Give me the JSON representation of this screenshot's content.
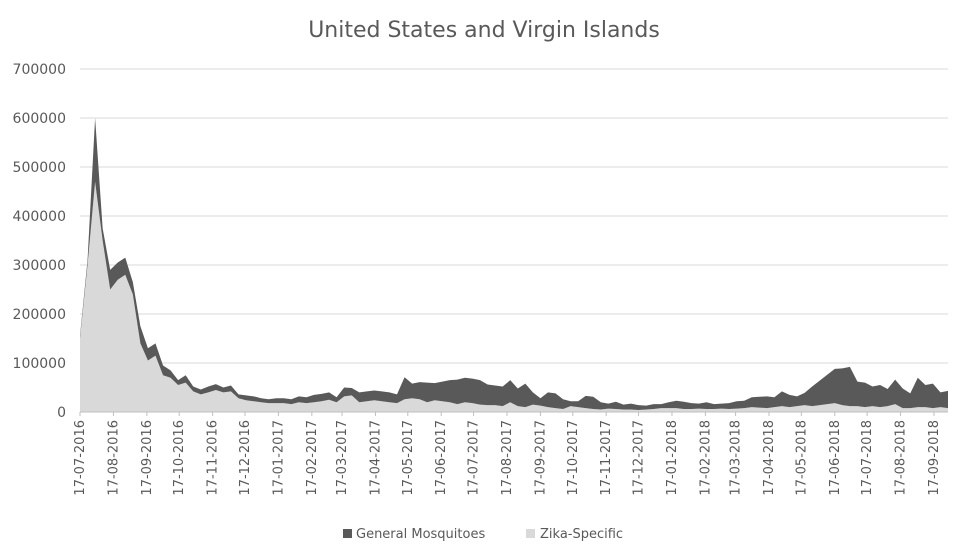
{
  "chart_data": {
    "type": "area",
    "stacked": true,
    "title": "United States and Virgin Islands",
    "xlabel": "",
    "ylabel": "",
    "ylim": [
      0,
      700000
    ],
    "yticks": [
      "0",
      "100000",
      "200000",
      "300000",
      "400000",
      "500000",
      "600000",
      "700000"
    ],
    "xticks": [
      "17-07-2016",
      "17-08-2016",
      "17-09-2016",
      "17-10-2016",
      "17-11-2016",
      "17-12-2016",
      "17-01-2017",
      "17-02-2017",
      "17-03-2017",
      "17-04-2017",
      "17-05-2017",
      "17-06-2017",
      "17-07-2017",
      "17-08-2017",
      "17-09-2017",
      "17-10-2017",
      "17-11-2017",
      "17-12-2017",
      "17-01-2018",
      "17-02-2018",
      "17-03-2018",
      "17-04-2018",
      "17-05-2018",
      "17-06-2018",
      "17-07-2018",
      "17-08-2018",
      "17-09-2018"
    ],
    "grid": "horizontal",
    "legend_position": "bottom",
    "colors": {
      "General Mosquitoes": "#595959",
      "Zika-Specific": "#d9d9d9"
    },
    "x": [
      "2016-07-17",
      "2016-07-24",
      "2016-07-31",
      "2016-08-07",
      "2016-08-14",
      "2016-08-21",
      "2016-08-28",
      "2016-09-04",
      "2016-09-11",
      "2016-09-18",
      "2016-09-25",
      "2016-10-02",
      "2016-10-09",
      "2016-10-16",
      "2016-10-23",
      "2016-10-30",
      "2016-11-06",
      "2016-11-13",
      "2016-11-20",
      "2016-11-27",
      "2016-12-04",
      "2016-12-11",
      "2016-12-18",
      "2016-12-25",
      "2017-01-01",
      "2017-01-08",
      "2017-01-15",
      "2017-01-22",
      "2017-01-29",
      "2017-02-05",
      "2017-02-12",
      "2017-02-19",
      "2017-02-26",
      "2017-03-05",
      "2017-03-12",
      "2017-03-19",
      "2017-03-26",
      "2017-04-02",
      "2017-04-09",
      "2017-04-16",
      "2017-04-23",
      "2017-04-30",
      "2017-05-07",
      "2017-05-14",
      "2017-05-21",
      "2017-05-28",
      "2017-06-04",
      "2017-06-11",
      "2017-06-18",
      "2017-06-25",
      "2017-07-02",
      "2017-07-09",
      "2017-07-16",
      "2017-07-23",
      "2017-07-30",
      "2017-08-06",
      "2017-08-13",
      "2017-08-20",
      "2017-08-27",
      "2017-09-03",
      "2017-09-10",
      "2017-09-17",
      "2017-09-24",
      "2017-10-01",
      "2017-10-08",
      "2017-10-15",
      "2017-10-22",
      "2017-10-29",
      "2017-11-05",
      "2017-11-12",
      "2017-11-19",
      "2017-11-26",
      "2017-12-03",
      "2017-12-10",
      "2017-12-17",
      "2017-12-24",
      "2017-12-31",
      "2018-01-07",
      "2018-01-14",
      "2018-01-21",
      "2018-01-28",
      "2018-02-04",
      "2018-02-11",
      "2018-02-18",
      "2018-02-25",
      "2018-03-04",
      "2018-03-11",
      "2018-03-18",
      "2018-03-25",
      "2018-04-01",
      "2018-04-08",
      "2018-04-15",
      "2018-04-22",
      "2018-04-29",
      "2018-05-06",
      "2018-05-13",
      "2018-05-20",
      "2018-05-27",
      "2018-06-03",
      "2018-06-10",
      "2018-06-17",
      "2018-06-24",
      "2018-07-01",
      "2018-07-08",
      "2018-07-15",
      "2018-07-22",
      "2018-07-29",
      "2018-08-05",
      "2018-08-12",
      "2018-08-19",
      "2018-08-26",
      "2018-09-02",
      "2018-09-09",
      "2018-09-16",
      "2018-09-23",
      "2018-09-30"
    ],
    "series": [
      {
        "name": "Zika-Specific",
        "values": [
          150000,
          300000,
          470000,
          350000,
          250000,
          270000,
          280000,
          240000,
          140000,
          105000,
          115000,
          75000,
          70000,
          55000,
          60000,
          42000,
          36000,
          40000,
          45000,
          40000,
          42000,
          28000,
          24000,
          22000,
          20000,
          18000,
          18000,
          18000,
          16000,
          20000,
          18000,
          20000,
          22000,
          25000,
          20000,
          32000,
          34000,
          20000,
          22000,
          24000,
          22000,
          20000,
          18000,
          26000,
          28000,
          26000,
          20000,
          24000,
          22000,
          20000,
          16000,
          20000,
          18000,
          15000,
          14000,
          14000,
          12000,
          20000,
          12000,
          10000,
          15000,
          13000,
          10000,
          8000,
          6000,
          12000,
          10000,
          8000,
          6000,
          5000,
          7000,
          6000,
          5000,
          5000,
          4000,
          5000,
          6000,
          8000,
          8000,
          8000,
          6000,
          6000,
          7000,
          6000,
          6000,
          7000,
          6000,
          7000,
          8000,
          10000,
          9000,
          8000,
          10000,
          12000,
          10000,
          12000,
          14000,
          12000,
          14000,
          16000,
          18000,
          14000,
          12000,
          12000,
          10000,
          12000,
          10000,
          12000,
          16000,
          8000,
          8000,
          10000,
          10000,
          8000,
          10000,
          8000
        ]
      },
      {
        "name": "General Mosquitoes",
        "values": [
          5000,
          10000,
          130000,
          25000,
          40000,
          35000,
          35000,
          25000,
          35000,
          25000,
          25000,
          20000,
          15000,
          10000,
          15000,
          10000,
          10000,
          12000,
          12000,
          10000,
          12000,
          8000,
          10000,
          10000,
          8000,
          8000,
          10000,
          10000,
          10000,
          12000,
          12000,
          15000,
          15000,
          15000,
          10000,
          18000,
          15000,
          20000,
          20000,
          20000,
          20000,
          20000,
          18000,
          45000,
          30000,
          35000,
          40000,
          35000,
          40000,
          45000,
          50000,
          50000,
          50000,
          50000,
          42000,
          40000,
          40000,
          45000,
          36000,
          48000,
          25000,
          15000,
          30000,
          30000,
          20000,
          10000,
          12000,
          25000,
          25000,
          15000,
          10000,
          15000,
          10000,
          12000,
          10000,
          8000,
          10000,
          8000,
          12000,
          15000,
          15000,
          12000,
          10000,
          14000,
          10000,
          10000,
          12000,
          15000,
          15000,
          20000,
          22000,
          24000,
          20000,
          30000,
          25000,
          20000,
          25000,
          40000,
          50000,
          60000,
          70000,
          75000,
          80000,
          50000,
          50000,
          40000,
          45000,
          35000,
          50000,
          40000,
          30000,
          60000,
          45000,
          50000,
          30000,
          35000
        ]
      }
    ]
  }
}
